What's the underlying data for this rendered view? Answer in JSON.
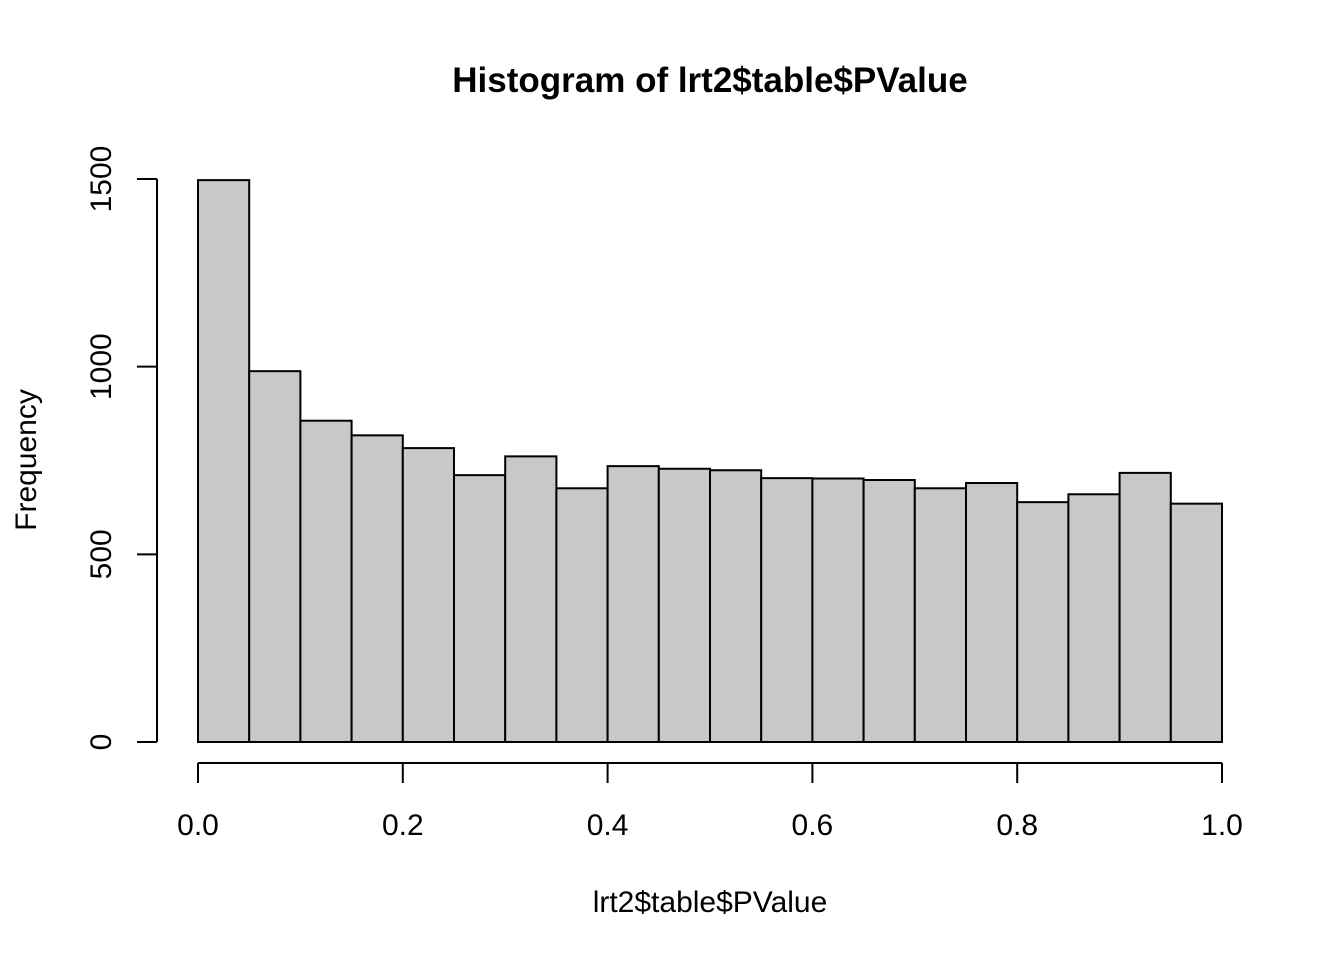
{
  "chart_data": {
    "type": "bar",
    "title": "Histogram of lrt2$table$PValue",
    "xlabel": "lrt2$table$PValue",
    "ylabel": "Frequency",
    "bar_color": "#C8C8C8",
    "border_color": "#000000",
    "bin_width": 0.05,
    "bins": [
      {
        "start": 0.0,
        "end": 0.05,
        "count": 1497
      },
      {
        "start": 0.05,
        "end": 0.1,
        "count": 988
      },
      {
        "start": 0.1,
        "end": 0.15,
        "count": 856
      },
      {
        "start": 0.15,
        "end": 0.2,
        "count": 817
      },
      {
        "start": 0.2,
        "end": 0.25,
        "count": 783
      },
      {
        "start": 0.25,
        "end": 0.3,
        "count": 711
      },
      {
        "start": 0.3,
        "end": 0.35,
        "count": 761
      },
      {
        "start": 0.35,
        "end": 0.4,
        "count": 676
      },
      {
        "start": 0.4,
        "end": 0.45,
        "count": 735
      },
      {
        "start": 0.45,
        "end": 0.5,
        "count": 728
      },
      {
        "start": 0.5,
        "end": 0.55,
        "count": 724
      },
      {
        "start": 0.55,
        "end": 0.6,
        "count": 703
      },
      {
        "start": 0.6,
        "end": 0.65,
        "count": 702
      },
      {
        "start": 0.65,
        "end": 0.7,
        "count": 698
      },
      {
        "start": 0.7,
        "end": 0.75,
        "count": 676
      },
      {
        "start": 0.75,
        "end": 0.8,
        "count": 690
      },
      {
        "start": 0.8,
        "end": 0.85,
        "count": 639
      },
      {
        "start": 0.85,
        "end": 0.9,
        "count": 660
      },
      {
        "start": 0.9,
        "end": 0.95,
        "count": 717
      },
      {
        "start": 0.95,
        "end": 1.0,
        "count": 635
      }
    ],
    "xlim": [
      0,
      1
    ],
    "ylim": [
      0,
      1500
    ],
    "x_ticks": [
      0.0,
      0.2,
      0.4,
      0.6,
      0.8,
      1.0
    ],
    "x_tick_labels": [
      "0.0",
      "0.2",
      "0.4",
      "0.6",
      "0.8",
      "1.0"
    ],
    "y_ticks": [
      0,
      500,
      1000,
      1500
    ],
    "y_tick_labels": [
      "0",
      "500",
      "1000",
      "1500"
    ],
    "grid": false,
    "legend": "none"
  }
}
